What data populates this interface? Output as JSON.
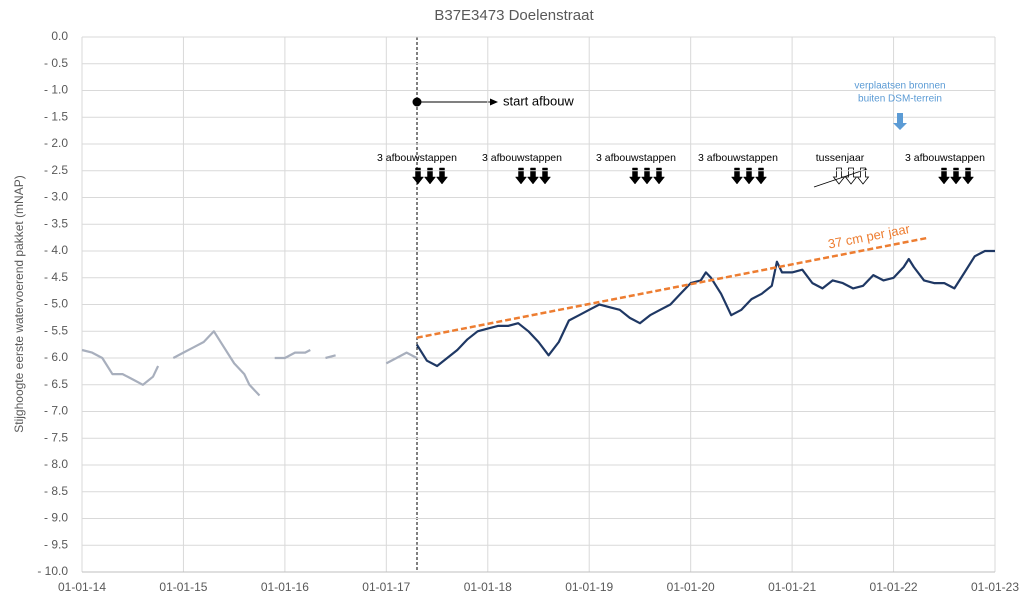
{
  "chart_data": {
    "type": "line",
    "title": "B37E3473 Doelenstraat",
    "y_label": "Stijghoogte eerste watervoerend pakket (mNAP)",
    "xlim": [
      2014,
      2023
    ],
    "xticks": [
      {
        "value": 2014,
        "label": "01-01-14"
      },
      {
        "value": 2015,
        "label": "01-01-15"
      },
      {
        "value": 2016,
        "label": "01-01-16"
      },
      {
        "value": 2017,
        "label": "01-01-17"
      },
      {
        "value": 2018,
        "label": "01-01-18"
      },
      {
        "value": 2019,
        "label": "01-01-19"
      },
      {
        "value": 2020,
        "label": "01-01-20"
      },
      {
        "value": 2021,
        "label": "01-01-21"
      },
      {
        "value": 2022,
        "label": "01-01-22"
      },
      {
        "value": 2023,
        "label": "01-01-23"
      }
    ],
    "ylim": [
      -10,
      0
    ],
    "yticks": [
      {
        "value": 0,
        "label": "0.0"
      },
      {
        "value": -0.5,
        "label": "- 0.5"
      },
      {
        "value": -1,
        "label": "- 1.0"
      },
      {
        "value": -1.5,
        "label": "- 1.5"
      },
      {
        "value": -2,
        "label": "- 2.0"
      },
      {
        "value": -2.5,
        "label": "- 2.5"
      },
      {
        "value": -3,
        "label": "- 3.0"
      },
      {
        "value": -3.5,
        "label": "- 3.5"
      },
      {
        "value": -4,
        "label": "- 4.0"
      },
      {
        "value": -4.5,
        "label": "- 4.5"
      },
      {
        "value": -5,
        "label": "- 5.0"
      },
      {
        "value": -5.5,
        "label": "- 5.5"
      },
      {
        "value": -6,
        "label": "- 6.0"
      },
      {
        "value": -6.5,
        "label": "- 6.5"
      },
      {
        "value": -7,
        "label": "- 7.0"
      },
      {
        "value": -7.5,
        "label": "- 7.5"
      },
      {
        "value": -8,
        "label": "- 8.0"
      },
      {
        "value": -8.5,
        "label": "- 8.5"
      },
      {
        "value": -9,
        "label": "- 9.0"
      },
      {
        "value": -9.5,
        "label": "- 9.5"
      },
      {
        "value": -10,
        "label": "- 10.0"
      }
    ],
    "grid": true,
    "series": [
      {
        "color": "#a8afbd",
        "x": [
          2014.0,
          2014.1,
          2014.2,
          2014.3,
          2014.4,
          2014.5,
          2014.6,
          2014.7,
          2014.75,
          2014.82,
          2014.9,
          2015.0,
          2015.1,
          2015.2,
          2015.3,
          2015.4,
          2015.5,
          2015.6,
          2015.65,
          2015.75,
          2015.82,
          2015.9,
          2016.0,
          2016.1,
          2016.2,
          2016.25,
          2016.32,
          2016.4,
          2016.5,
          2016.75,
          2017.0,
          2017.1,
          2017.2,
          2017.3
        ],
        "values": [
          -5.85,
          -5.9,
          -6.0,
          -6.3,
          -6.3,
          -6.4,
          -6.5,
          -6.35,
          -6.15,
          null,
          -6.0,
          -5.9,
          -5.8,
          -5.7,
          -5.5,
          -5.8,
          -6.1,
          -6.3,
          -6.5,
          -6.7,
          null,
          -6.0,
          -6.0,
          -5.9,
          -5.9,
          -5.85,
          null,
          -6.0,
          -5.95,
          null,
          -6.1,
          -6.0,
          -5.9,
          -6.0
        ]
      },
      {
        "color": "#1f3864",
        "x": [
          2017.3,
          2017.4,
          2017.5,
          2017.6,
          2017.7,
          2017.8,
          2017.9,
          2018.0,
          2018.1,
          2018.2,
          2018.3,
          2018.4,
          2018.5,
          2018.6,
          2018.7,
          2018.8,
          2018.9,
          2019.0,
          2019.1,
          2019.2,
          2019.3,
          2019.4,
          2019.5,
          2019.6,
          2019.7,
          2019.8,
          2019.9,
          2020.0,
          2020.1,
          2020.15,
          2020.2,
          2020.3,
          2020.4,
          2020.5,
          2020.6,
          2020.7,
          2020.8,
          2020.85,
          2020.9,
          2021.0,
          2021.1,
          2021.2,
          2021.3,
          2021.4,
          2021.5,
          2021.6,
          2021.7,
          2021.8,
          2021.9,
          2022.0,
          2022.1,
          2022.15,
          2022.2,
          2022.3,
          2022.4,
          2022.5,
          2022.6,
          2022.7,
          2022.8,
          2022.9,
          2023.0
        ],
        "values": [
          -5.75,
          -6.05,
          -6.15,
          -6.0,
          -5.85,
          -5.65,
          -5.5,
          -5.45,
          -5.4,
          -5.4,
          -5.35,
          -5.5,
          -5.7,
          -5.95,
          -5.7,
          -5.3,
          -5.2,
          -5.1,
          -5.0,
          -5.05,
          -5.1,
          -5.25,
          -5.35,
          -5.2,
          -5.1,
          -5.0,
          -4.8,
          -4.6,
          -4.55,
          -4.4,
          -4.5,
          -4.8,
          -5.2,
          -5.1,
          -4.9,
          -4.8,
          -4.65,
          -4.2,
          -4.4,
          -4.4,
          -4.35,
          -4.6,
          -4.7,
          -4.55,
          -4.6,
          -4.7,
          -4.65,
          -4.45,
          -4.55,
          -4.5,
          -4.3,
          -4.15,
          -4.3,
          -4.55,
          -4.6,
          -4.6,
          -4.7,
          -4.4,
          -4.1,
          -4.0,
          -4.0
        ]
      },
      {
        "name": "37 cm per jaar",
        "color": "#ed7d31",
        "dashed": true,
        "x": [
          2017.3,
          2022.35
        ],
        "values": [
          -5.62,
          -3.75
        ]
      }
    ],
    "annotations": [
      "start afbouw",
      "3 afbouwstappen",
      "3 afbouwstappen",
      "3 afbouwstappen",
      "3 afbouwstappen",
      "tussenjaar",
      "3 afbouwstappen",
      "verplaatsen bronnen",
      "buiten DSM-terrein"
    ]
  }
}
